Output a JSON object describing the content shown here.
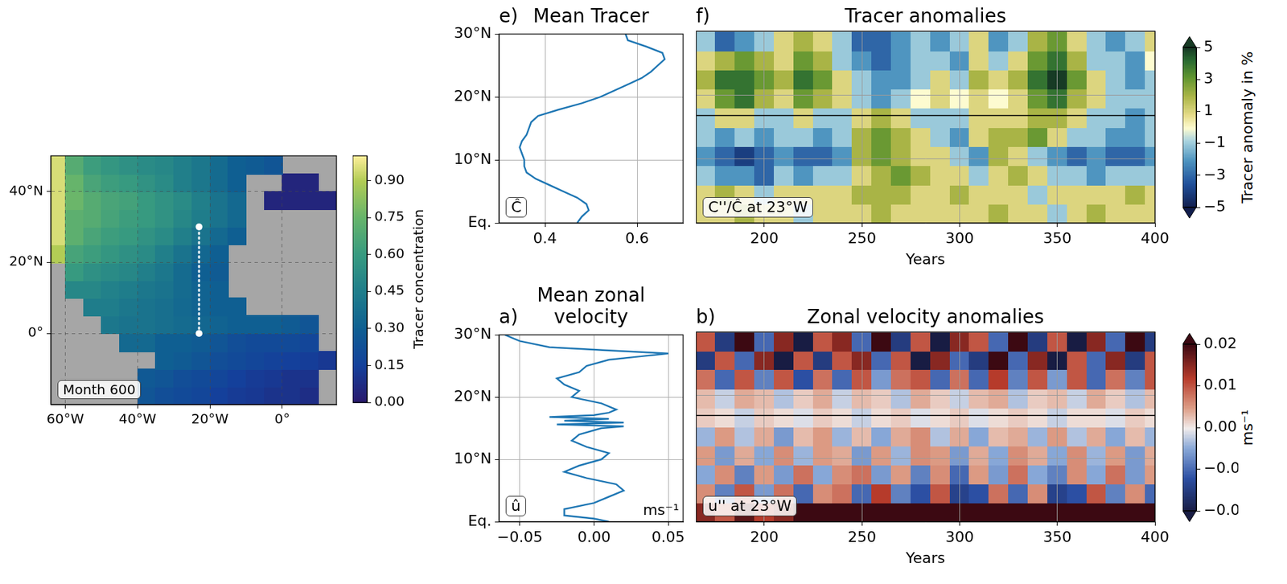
{
  "chart_data": [
    {
      "type": "map",
      "annotation": "Month 600",
      "x": [
        -62.5,
        -57.5,
        -52.5,
        -47.5,
        -42.5,
        -37.5,
        -32.5,
        -27.5,
        -22.5,
        -17.5,
        -12.5,
        -7.5,
        -2.5,
        2.5,
        7.5,
        12.5
      ],
      "y": [
        -17.5,
        -12.5,
        -7.5,
        -2.5,
        2.5,
        7.5,
        12.5,
        17.5,
        22.5,
        27.5,
        32.5,
        37.5,
        42.5,
        47.5
      ],
      "cells": [
        [
          null,
          null,
          null,
          null,
          null,
          0.25,
          0.22,
          0.2,
          0.18,
          0.15,
          0.13,
          0.12,
          0.1,
          0.1,
          0.08,
          null
        ],
        [
          null,
          null,
          null,
          null,
          null,
          0.27,
          0.25,
          0.22,
          0.2,
          0.18,
          0.15,
          0.13,
          0.12,
          0.1,
          0.1,
          null
        ],
        [
          null,
          null,
          null,
          null,
          null,
          null,
          0.3,
          0.28,
          0.25,
          0.22,
          0.2,
          0.18,
          0.16,
          0.15,
          0.14,
          0.12
        ],
        [
          null,
          null,
          null,
          null,
          0.35,
          0.35,
          0.3,
          0.3,
          0.28,
          0.25,
          0.22,
          0.2,
          0.2,
          0.2,
          0.18,
          null
        ],
        [
          null,
          null,
          null,
          0.42,
          0.4,
          0.4,
          0.38,
          0.36,
          0.34,
          0.32,
          0.3,
          0.3,
          0.3,
          0.28,
          0.25,
          null
        ],
        [
          null,
          null,
          0.45,
          0.45,
          0.42,
          0.4,
          0.38,
          0.35,
          0.32,
          0.3,
          0.3,
          null,
          null,
          null,
          null,
          null
        ],
        [
          null,
          0.5,
          0.5,
          0.47,
          0.45,
          0.42,
          0.4,
          0.36,
          0.32,
          0.3,
          null,
          null,
          null,
          null,
          null,
          null
        ],
        [
          null,
          0.6,
          0.55,
          0.52,
          0.5,
          0.46,
          0.42,
          0.36,
          0.3,
          0.28,
          null,
          null,
          null,
          null,
          null,
          null
        ],
        [
          0.9,
          0.65,
          0.62,
          0.58,
          0.55,
          0.52,
          0.46,
          0.4,
          0.34,
          0.3,
          null,
          null,
          null,
          null,
          null,
          null
        ],
        [
          0.95,
          0.72,
          0.66,
          0.62,
          0.6,
          0.56,
          0.52,
          0.46,
          0.4,
          0.35,
          0.3,
          null,
          null,
          null,
          null,
          null
        ],
        [
          0.95,
          0.72,
          0.7,
          0.65,
          0.62,
          0.6,
          0.56,
          0.5,
          0.45,
          0.4,
          0.35,
          null,
          null,
          null,
          null,
          null
        ],
        [
          0.95,
          0.76,
          0.7,
          0.66,
          0.64,
          0.6,
          0.56,
          0.52,
          0.46,
          0.4,
          0.35,
          null,
          0.05,
          0.05,
          0.05,
          0.05
        ],
        [
          0.95,
          0.75,
          0.66,
          0.62,
          0.6,
          0.56,
          0.52,
          0.46,
          0.42,
          0.36,
          0.3,
          null,
          null,
          0.05,
          0.05,
          null
        ],
        [
          0.95,
          0.7,
          0.62,
          0.58,
          0.55,
          0.52,
          0.5,
          0.46,
          0.42,
          0.36,
          0.3,
          0.28,
          0.25,
          null,
          null,
          null
        ]
      ],
      "xlim": [
        -64,
        15
      ],
      "xticks": [
        {
          "value": -60,
          "label": "60°W"
        },
        {
          "value": -40,
          "label": "40°W"
        },
        {
          "value": -20,
          "label": "20°W"
        },
        {
          "value": 0,
          "label": "0°"
        }
      ],
      "ylim": [
        -20,
        50
      ],
      "yticks": [
        {
          "value": 0,
          "label": "0°"
        },
        {
          "value": 20,
          "label": "20°N"
        },
        {
          "value": 40,
          "label": "40°N"
        }
      ],
      "grid": true,
      "colorbar": {
        "label": "Tracer concentration",
        "lim": [
          0,
          1
        ],
        "ticks": [
          {
            "value": 0,
            "label": "0.00"
          },
          0.15,
          {
            "value": 0.3,
            "label": "0.30"
          },
          0.45,
          {
            "value": 0.6,
            "label": "0.60"
          },
          0.75,
          {
            "value": 0.9,
            "label": "0.90"
          }
        ]
      },
      "section": {
        "x": [
          -23,
          -23
        ],
        "y": [
          0,
          30
        ],
        "color": "#ffffff",
        "line_style": "dotted",
        "marker": "circle"
      }
    },
    {
      "type": "line",
      "panel": "e)",
      "title": "Mean Tracer",
      "annotation": "Ĉ",
      "color": "#1f77b4",
      "x": [
        0.47,
        0.48,
        0.495,
        0.49,
        0.47,
        0.44,
        0.41,
        0.38,
        0.36,
        0.355,
        0.355,
        0.35,
        0.345,
        0.35,
        0.36,
        0.365,
        0.37,
        0.385,
        0.43,
        0.48,
        0.52,
        0.55,
        0.58,
        0.61,
        0.63,
        0.645,
        0.66,
        0.655,
        0.62,
        0.58,
        0.575
      ],
      "y": [
        0,
        1,
        2,
        3,
        4,
        5,
        6,
        7,
        8,
        9,
        10,
        11,
        12,
        13,
        14,
        15,
        16,
        17,
        18,
        19,
        20,
        21,
        22,
        23,
        24,
        25,
        26,
        27,
        28,
        29,
        30
      ],
      "xlim": [
        0.3,
        0.7
      ],
      "xticks": [
        0.4,
        0.6
      ],
      "ylim": [
        0,
        30
      ],
      "yticks": [
        {
          "value": 0,
          "label": "Eq."
        },
        {
          "value": 10,
          "label": "10°N"
        },
        {
          "value": 20,
          "label": "20°N"
        },
        {
          "value": 30,
          "label": "30°N"
        }
      ],
      "grid": true
    },
    {
      "type": "heatmap",
      "panel": "f)",
      "title": "Tracer anomalies",
      "annotation": "C''/Ĉ at 23°W",
      "xlabel": "Years",
      "x": [
        170,
        180,
        190,
        200,
        210,
        220,
        230,
        240,
        250,
        260,
        270,
        280,
        290,
        300,
        310,
        320,
        330,
        340,
        350,
        360,
        370,
        380,
        390,
        400
      ],
      "y": [
        1.5,
        4.5,
        7.5,
        10.5,
        13.5,
        16.5,
        19.5,
        22.5,
        25.5,
        28.5
      ],
      "cells": [
        [
          1,
          1,
          2,
          1,
          1,
          -1,
          1,
          1,
          1,
          2,
          1,
          1,
          1,
          1,
          1,
          2,
          1,
          1,
          -1,
          1,
          2,
          1,
          1,
          1
        ],
        [
          1,
          2,
          1,
          -1,
          1,
          1,
          1,
          1,
          2,
          2,
          2,
          1,
          1,
          2,
          1,
          1,
          1,
          -1,
          1,
          1,
          1,
          1,
          2,
          1
        ],
        [
          -1,
          -2,
          -2,
          -3,
          -1,
          -2,
          -1,
          -1,
          1,
          2,
          3,
          2,
          1,
          1,
          -1,
          1,
          2,
          1,
          -1,
          -1,
          -2,
          -1,
          -1,
          -1
        ],
        [
          -2,
          -3,
          -4,
          -3,
          -2,
          -3,
          -3,
          -2,
          2,
          3,
          2,
          1,
          1,
          -1,
          -2,
          2,
          1,
          -1,
          -2,
          -3,
          -2,
          -3,
          -3,
          -2
        ],
        [
          -1,
          -2,
          -1,
          -2,
          -1,
          -1,
          -2,
          -1,
          2,
          3,
          2,
          1,
          -1,
          -2,
          1,
          2,
          2,
          3,
          1,
          -1,
          -1,
          -2,
          -2,
          -1
        ],
        [
          -1,
          1,
          1,
          -1,
          -1,
          1,
          -1,
          -1,
          1,
          2,
          1,
          -1,
          -1,
          -1,
          1,
          1,
          1,
          2,
          2,
          1,
          -1,
          -1,
          -2,
          -1
        ],
        [
          1,
          3,
          4,
          2,
          1,
          3,
          2,
          1,
          -1,
          -2,
          -1,
          0,
          1,
          0,
          1,
          0,
          1,
          3,
          4,
          2,
          1,
          -1,
          -1,
          -1
        ],
        [
          2,
          4,
          4,
          3,
          2,
          4,
          3,
          1,
          -1,
          -2,
          -2,
          -1,
          1,
          -1,
          2,
          1,
          2,
          4,
          5,
          3,
          1,
          -1,
          -2,
          -1
        ],
        [
          1,
          2,
          3,
          2,
          1,
          3,
          2,
          -1,
          -2,
          -3,
          -2,
          -1,
          -1,
          -2,
          1,
          -1,
          1,
          3,
          4,
          2,
          -1,
          -1,
          -2,
          0
        ],
        [
          -1,
          -3,
          -2,
          -1,
          1,
          2,
          1,
          -1,
          -3,
          -3,
          -2,
          -1,
          -2,
          -1,
          1,
          -2,
          -1,
          2,
          3,
          1,
          -1,
          -2,
          -1,
          1
        ]
      ],
      "hline": 16.8,
      "xlim": [
        165,
        400
      ],
      "xticks": [
        200,
        250,
        300,
        350,
        400
      ],
      "ylim": [
        0,
        30
      ],
      "yticks": [
        0,
        10,
        20,
        30
      ],
      "tick_labels": "x",
      "grid": true,
      "colorbar": {
        "label": "Tracer anomaly in %",
        "lim": [
          -5,
          5
        ],
        "ticks": [
          {
            "value": -5,
            "label": "−5"
          },
          {
            "value": -3,
            "label": "−3"
          },
          {
            "value": -1,
            "label": "−1"
          },
          1,
          3,
          5
        ]
      }
    },
    {
      "type": "line",
      "panel": "a)",
      "title": "Mean zonal velocity",
      "annotation": "û",
      "xlabel": "ms⁻¹",
      "color": "#1f77b4",
      "x": [
        0.01,
        0.0,
        -0.02,
        -0.02,
        0.0,
        0.01,
        0.02,
        0.015,
        -0.005,
        -0.02,
        -0.01,
        0.005,
        0.01,
        -0.005,
        -0.015,
        -0.01,
        0.005,
        0.02,
        -0.025,
        0.02,
        -0.02,
        0.01,
        -0.03,
        0.0,
        0.01,
        0.015,
        0.005,
        -0.015,
        -0.01,
        -0.02,
        -0.025,
        -0.01,
        -0.005,
        0.01,
        0.03,
        0.05,
        0.01,
        -0.03,
        -0.05,
        -0.055,
        -0.06
      ],
      "y": [
        0,
        0.5,
        1,
        2,
        3,
        4,
        5,
        6,
        7,
        8,
        9,
        10,
        11,
        12,
        13,
        14,
        15,
        15.3,
        15.6,
        15.9,
        16.2,
        16.5,
        16.8,
        17.1,
        17.5,
        18,
        19,
        20,
        21,
        22,
        23,
        24,
        25,
        26,
        26.5,
        27,
        27.5,
        28,
        29,
        29.5,
        30
      ],
      "xlim": [
        -0.064,
        0.06
      ],
      "xticks": [
        {
          "value": -0.05,
          "label": "−0.05"
        },
        {
          "value": 0,
          "label": "0.00"
        },
        0.05
      ],
      "ylim": [
        0,
        30
      ],
      "yticks": [
        {
          "value": 0,
          "label": "Eq."
        },
        {
          "value": 10,
          "label": "10°N"
        },
        {
          "value": 20,
          "label": "20°N"
        },
        {
          "value": 30,
          "label": "30°N"
        }
      ],
      "grid": true
    },
    {
      "type": "heatmap",
      "panel": "b)",
      "title": "Zonal velocity anomalies",
      "annotation": "u'' at 23°W",
      "xlabel": "Years",
      "x": [
        170,
        180,
        190,
        200,
        210,
        220,
        230,
        240,
        250,
        260,
        270,
        280,
        290,
        300,
        310,
        320,
        330,
        340,
        350,
        360,
        370,
        380,
        390,
        400
      ],
      "y": [
        1.5,
        4.5,
        7.5,
        10.5,
        13.5,
        16.5,
        19.5,
        22.5,
        25.5,
        28.5
      ],
      "cells": [
        [
          0.015,
          0.01,
          0.018,
          0.012,
          0.015,
          0.02,
          0.025,
          0.03,
          0.03,
          0.028,
          0.03,
          0.025,
          0.03,
          0.028,
          0.03,
          0.025,
          0.03,
          0.03,
          0.028,
          0.03,
          0.025,
          0.03,
          0.028,
          0.03
        ],
        [
          0.006,
          -0.008,
          0.01,
          -0.006,
          0.008,
          -0.01,
          0.006,
          0.008,
          -0.01,
          0.012,
          -0.008,
          -0.012,
          0.01,
          -0.014,
          -0.012,
          0.008,
          -0.01,
          0.006,
          -0.014,
          -0.012,
          0.01,
          -0.008,
          0.006,
          -0.01
        ],
        [
          -0.005,
          0.006,
          -0.008,
          0.005,
          -0.006,
          0.008,
          -0.005,
          0.006,
          0.008,
          -0.006,
          0.005,
          -0.008,
          0.006,
          -0.01,
          0.005,
          -0.006,
          0.008,
          -0.005,
          -0.008,
          0.006,
          -0.005,
          0.008,
          -0.006,
          0.005
        ],
        [
          0.005,
          -0.006,
          0.004,
          -0.005,
          0.006,
          -0.004,
          0.005,
          0.004,
          -0.006,
          0.005,
          -0.004,
          0.006,
          0.005,
          -0.006,
          0.004,
          -0.005,
          0.006,
          0.004,
          -0.005,
          0.006,
          -0.004,
          0.005,
          -0.006,
          0.004
        ],
        [
          -0.004,
          0.005,
          -0.003,
          0.004,
          -0.006,
          0.003,
          0.005,
          -0.004,
          0.003,
          -0.005,
          0.004,
          0.006,
          -0.003,
          0.004,
          -0.005,
          0.003,
          0.004,
          -0.004,
          0.005,
          -0.003,
          0.004,
          -0.005,
          0.003,
          -0.004
        ],
        [
          0.002,
          0.001,
          -0.002,
          0.002,
          0.001,
          -0.001,
          0.002,
          0.001,
          -0.002,
          0.001,
          0.002,
          -0.001,
          0.001,
          0.002,
          -0.001,
          0.001,
          0.002,
          0.001,
          -0.002,
          0.001,
          0.001,
          -0.001,
          0.002,
          0.001
        ],
        [
          0.003,
          -0.002,
          0.004,
          0.003,
          -0.003,
          0.002,
          0.004,
          -0.002,
          0.003,
          0.002,
          -0.003,
          0.004,
          0.002,
          -0.002,
          0.003,
          0.004,
          -0.003,
          0.002,
          0.003,
          -0.002,
          0.004,
          0.002,
          -0.003,
          0.003
        ],
        [
          0.008,
          -0.01,
          0.01,
          -0.008,
          0.01,
          -0.012,
          0.008,
          -0.01,
          0.01,
          -0.006,
          0.008,
          0.01,
          -0.01,
          0.008,
          -0.01,
          0.012,
          -0.008,
          0.01,
          -0.006,
          0.01,
          -0.01,
          0.008,
          -0.008,
          0.01
        ],
        [
          -0.015,
          0.01,
          -0.01,
          0.015,
          -0.02,
          0.01,
          -0.015,
          0.01,
          0.015,
          -0.01,
          0.01,
          -0.02,
          0.015,
          -0.01,
          -0.015,
          0.02,
          -0.01,
          0.015,
          -0.02,
          0.01,
          -0.01,
          0.015,
          -0.015,
          0.01
        ],
        [
          0.01,
          -0.015,
          0.02,
          -0.01,
          0.015,
          -0.02,
          0.01,
          0.015,
          -0.01,
          0.02,
          -0.015,
          0.01,
          -0.02,
          0.015,
          0.01,
          -0.01,
          0.02,
          -0.015,
          0.01,
          -0.02,
          0.015,
          -0.01,
          0.02,
          -0.015
        ]
      ],
      "hline": 16.8,
      "xlim": [
        165,
        400
      ],
      "xticks": [
        200,
        250,
        300,
        350,
        400
      ],
      "ylim": [
        0,
        30
      ],
      "yticks": [
        0,
        10,
        20,
        30
      ],
      "tick_labels": "x",
      "grid": true,
      "colorbar": {
        "label": "ms⁻¹",
        "lim": [
          -0.02,
          0.02
        ],
        "ticks": [
          {
            "value": -0.02,
            "label": "−0.02"
          },
          {
            "value": -0.01,
            "label": "−0.01"
          },
          {
            "value": 0,
            "label": "0.00"
          },
          0.01,
          0.02
        ]
      }
    }
  ]
}
